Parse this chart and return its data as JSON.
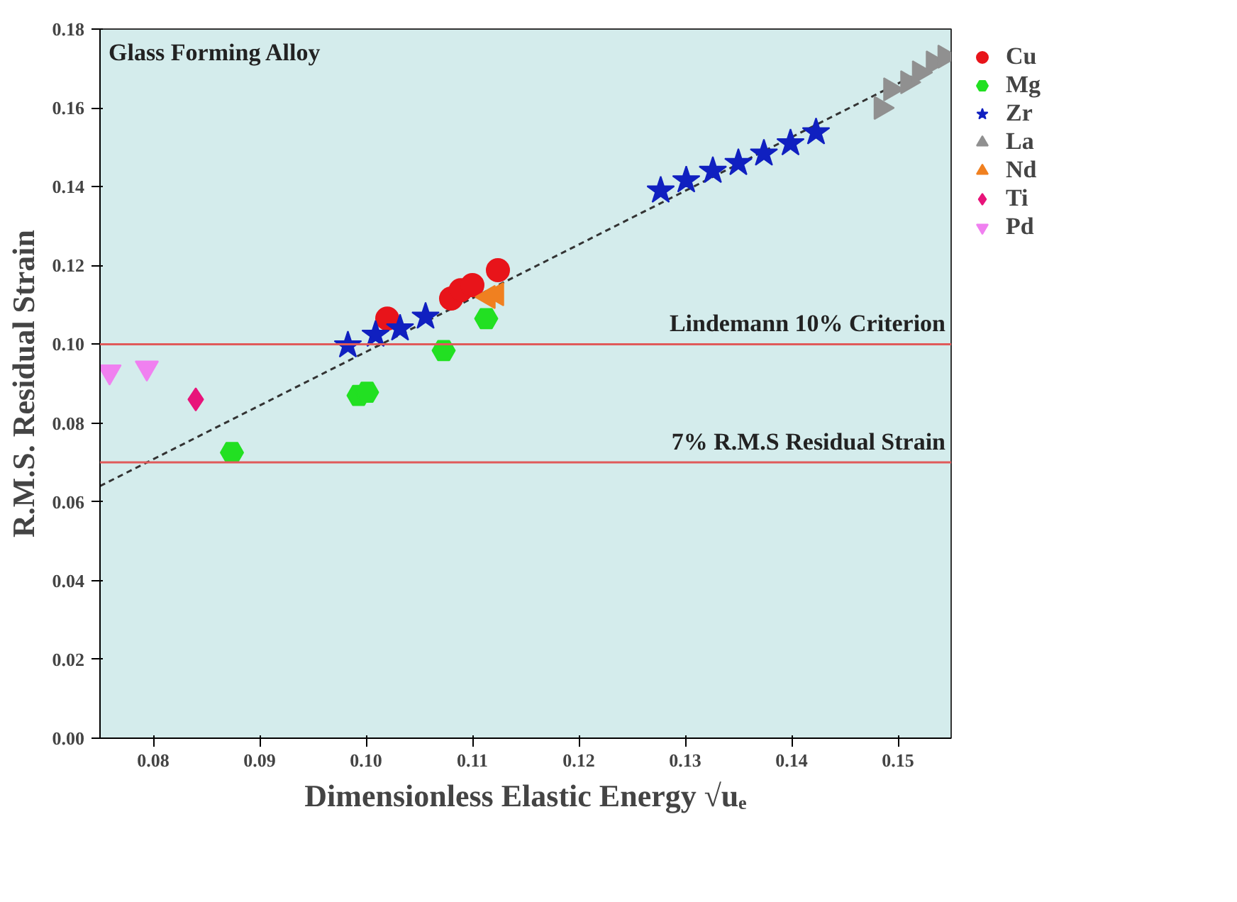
{
  "chart_data": {
    "type": "scatter",
    "xlabel": "Dimensionless Elastic Energy √uₑ",
    "ylabel": "R.M.S. Residual Strain",
    "xlim": [
      0.075,
      0.155
    ],
    "xticks": [
      0.08,
      0.09,
      {
        "value": 0.1,
        "label": "0.10"
      },
      0.11,
      0.12,
      0.13,
      0.14,
      0.15
    ],
    "ylim": [
      0,
      0.18
    ],
    "yticks": [
      {
        "value": 0,
        "label": "0.00"
      },
      0.02,
      0.04,
      0.06,
      0.08,
      {
        "value": 0.1,
        "label": "0.10"
      },
      0.12,
      0.14,
      0.16,
      0.18
    ],
    "grid": false,
    "legend": "top right",
    "annotations": [
      "Glass Forming Alloy"
    ],
    "ref_lines": [
      {
        "axis": "y",
        "value": 0.1,
        "label": "Lindemann 10% Criterion",
        "color": "#e05a5a"
      },
      {
        "axis": "y",
        "value": 0.07,
        "label": "7% R.M.S Residual Strain",
        "color": "#e05a5a"
      }
    ],
    "series": [
      {
        "type": "line",
        "color": "#333333",
        "line_style": "dashed",
        "x": [
          0.075,
          0.155
        ],
        "values": [
          0.064,
          0.173
        ]
      },
      {
        "name": "Cu",
        "color": "#e8141a",
        "marker": "circle",
        "x": [
          0.102,
          0.108,
          0.1089,
          0.11,
          0.1124
        ],
        "values": [
          0.1065,
          0.1116,
          0.1137,
          0.115,
          0.1188
        ]
      },
      {
        "name": "Mg",
        "color": "#22e022",
        "x": [
          0.0874,
          0.0993,
          0.1001,
          0.1073,
          0.1113
        ],
        "values": [
          0.0725,
          0.087,
          0.0878,
          0.0984,
          0.1065
        ]
      },
      {
        "name": "Zr",
        "color": "#1020c0",
        "marker": "star",
        "x": [
          0.0983,
          0.1009,
          0.1032,
          0.1056,
          0.1277,
          0.1301,
          0.1326,
          0.135,
          0.1374,
          0.1399,
          0.1423
        ],
        "values": [
          0.0997,
          0.1024,
          0.104,
          0.107,
          0.139,
          0.1416,
          0.144,
          0.146,
          0.1484,
          0.151,
          0.1538
        ]
      },
      {
        "name": "La",
        "color": "#909090",
        "marker": "triangle_right",
        "x": [
          0.1484,
          0.1493,
          0.1509,
          0.152,
          0.1533,
          0.1544
        ],
        "values": [
          0.16,
          0.1647,
          0.1665,
          0.169,
          0.1715,
          0.173
        ]
      },
      {
        "name": "Nd",
        "color": "#f08020",
        "marker": "triangle_left",
        "x": [
          0.1115,
          0.1123
        ],
        "values": [
          0.112,
          0.1127
        ]
      },
      {
        "name": "Ti",
        "color": "#e8147a",
        "marker": "diamond",
        "x": [
          0.084
        ],
        "values": [
          0.086
        ]
      },
      {
        "name": "Pd",
        "color": "#f080f0",
        "marker": "triangle_down",
        "x": [
          0.0759,
          0.0794
        ],
        "values": [
          0.093,
          0.094
        ]
      }
    ]
  }
}
